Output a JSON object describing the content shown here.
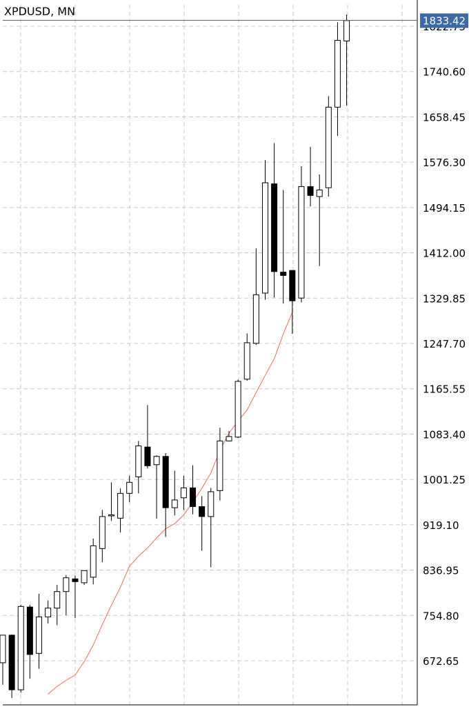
{
  "symbol_label": "XPDUSD, MN",
  "last_price_label": "1833.42",
  "colors": {
    "grid": "#c8c8c8",
    "candle_up_fill": "#ffffff",
    "candle_down_fill": "#000000",
    "candle_outline": "#000000",
    "moving_average": "#e8705a",
    "price_tag_bg": "#3d6aa4",
    "price_tag_text": "#ffffff",
    "last_price_line": "#3d6aa4"
  },
  "chart_data": {
    "type": "candlestick",
    "title": "XPDUSD, MN",
    "y_ticks": [
      "1822.75",
      "1740.60",
      "1658.45",
      "1576.30",
      "1494.15",
      "1412.00",
      "1329.85",
      "1247.70",
      "1165.55",
      "1083.40",
      "1001.25",
      "919.10",
      "836.95",
      "754.80",
      "672.65"
    ],
    "ylim": [
      591.9,
      1856.3
    ],
    "grid": true,
    "last_price": 1833.42,
    "candles": [
      {
        "o": 669,
        "h": 709,
        "l": 629,
        "c": 719
      },
      {
        "o": 719,
        "h": 720,
        "l": 605,
        "c": 620
      },
      {
        "o": 620,
        "h": 774,
        "l": 615,
        "c": 771
      },
      {
        "o": 770,
        "h": 774,
        "l": 640,
        "c": 684
      },
      {
        "o": 686,
        "h": 794,
        "l": 658,
        "c": 752
      },
      {
        "o": 752,
        "h": 782,
        "l": 740,
        "c": 768
      },
      {
        "o": 768,
        "h": 810,
        "l": 737,
        "c": 798
      },
      {
        "o": 798,
        "h": 828,
        "l": 755,
        "c": 823
      },
      {
        "o": 821,
        "h": 827,
        "l": 750,
        "c": 816
      },
      {
        "o": 814,
        "h": 836,
        "l": 810,
        "c": 836
      },
      {
        "o": 824,
        "h": 894,
        "l": 811,
        "c": 881
      },
      {
        "o": 876,
        "h": 946,
        "l": 851,
        "c": 934
      },
      {
        "o": 937,
        "h": 996,
        "l": 926,
        "c": 937
      },
      {
        "o": 931,
        "h": 985,
        "l": 905,
        "c": 976
      },
      {
        "o": 976,
        "h": 1008,
        "l": 960,
        "c": 996
      },
      {
        "o": 1006,
        "h": 1071,
        "l": 976,
        "c": 1062
      },
      {
        "o": 1060,
        "h": 1136,
        "l": 1021,
        "c": 1026
      },
      {
        "o": 1028,
        "h": 1045,
        "l": 930,
        "c": 1043
      },
      {
        "o": 1043,
        "h": 1049,
        "l": 897,
        "c": 950
      },
      {
        "o": 950,
        "h": 1017,
        "l": 936,
        "c": 964
      },
      {
        "o": 968,
        "h": 1008,
        "l": 946,
        "c": 986
      },
      {
        "o": 986,
        "h": 1027,
        "l": 938,
        "c": 952
      },
      {
        "o": 952,
        "h": 971,
        "l": 872,
        "c": 934
      },
      {
        "o": 934,
        "h": 986,
        "l": 842,
        "c": 979
      },
      {
        "o": 981,
        "h": 1095,
        "l": 963,
        "c": 1071
      },
      {
        "o": 1071,
        "h": 1089,
        "l": 1070,
        "c": 1079
      },
      {
        "o": 1078,
        "h": 1182,
        "l": 1076,
        "c": 1179
      },
      {
        "o": 1183,
        "h": 1266,
        "l": 1180,
        "c": 1249
      },
      {
        "o": 1248,
        "h": 1420,
        "l": 1245,
        "c": 1336
      },
      {
        "o": 1339,
        "h": 1580,
        "l": 1327,
        "c": 1539
      },
      {
        "o": 1537,
        "h": 1611,
        "l": 1331,
        "c": 1378
      },
      {
        "o": 1377,
        "h": 1526,
        "l": 1320,
        "c": 1371
      },
      {
        "o": 1380,
        "h": 1378,
        "l": 1265,
        "c": 1325
      },
      {
        "o": 1330,
        "h": 1569,
        "l": 1322,
        "c": 1532
      },
      {
        "o": 1532,
        "h": 1604,
        "l": 1496,
        "c": 1516
      },
      {
        "o": 1514,
        "h": 1554,
        "l": 1388,
        "c": 1526
      },
      {
        "o": 1530,
        "h": 1696,
        "l": 1514,
        "c": 1676
      },
      {
        "o": 1676,
        "h": 1830,
        "l": 1624,
        "c": 1797
      },
      {
        "o": 1796,
        "h": 1844,
        "l": 1679,
        "c": 1833
      }
    ],
    "moving_average": [
      {
        "i": 5,
        "v": 612
      },
      {
        "i": 6,
        "v": 626
      },
      {
        "i": 7,
        "v": 637
      },
      {
        "i": 8,
        "v": 647
      },
      {
        "i": 9,
        "v": 671
      },
      {
        "i": 10,
        "v": 701
      },
      {
        "i": 11,
        "v": 738
      },
      {
        "i": 12,
        "v": 773
      },
      {
        "i": 13,
        "v": 806
      },
      {
        "i": 14,
        "v": 844
      },
      {
        "i": 15,
        "v": 862
      },
      {
        "i": 16,
        "v": 877
      },
      {
        "i": 17,
        "v": 895
      },
      {
        "i": 18,
        "v": 912
      },
      {
        "i": 19,
        "v": 921
      },
      {
        "i": 20,
        "v": 937
      },
      {
        "i": 21,
        "v": 960
      },
      {
        "i": 22,
        "v": 985
      },
      {
        "i": 23,
        "v": 1013
      },
      {
        "i": 24,
        "v": 1054
      },
      {
        "i": 25,
        "v": 1085
      },
      {
        "i": 26,
        "v": 1107
      },
      {
        "i": 27,
        "v": 1127
      },
      {
        "i": 28,
        "v": 1159
      },
      {
        "i": 29,
        "v": 1190
      },
      {
        "i": 30,
        "v": 1220
      },
      {
        "i": 31,
        "v": 1265
      },
      {
        "i": 32,
        "v": 1304
      }
    ]
  }
}
